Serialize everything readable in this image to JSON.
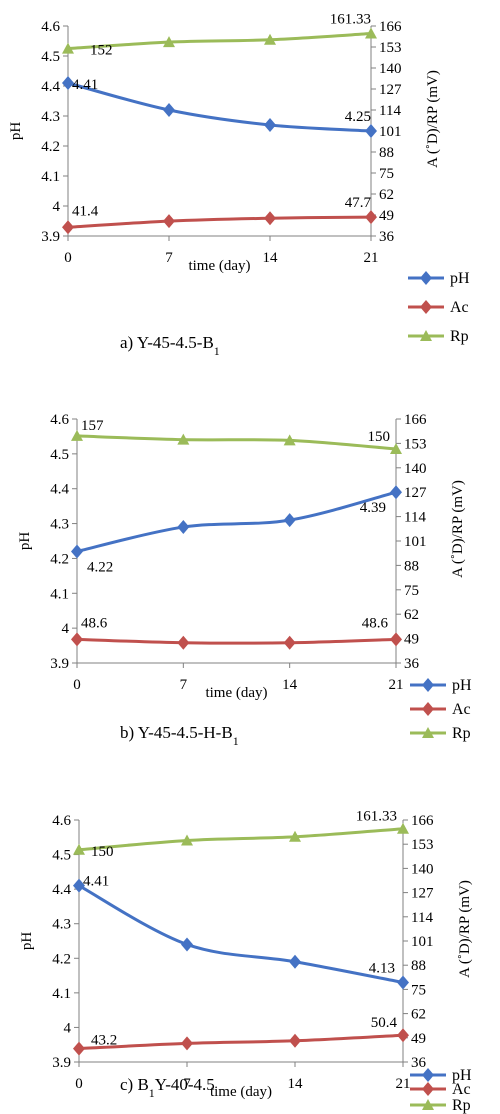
{
  "colors": {
    "pH": "#4472C4",
    "Ac": "#C0504D",
    "Rp": "#9BBB59",
    "axis": "#808080"
  },
  "chart_data": [
    {
      "type": "line",
      "caption_main": "a) Y-45-4.5-B",
      "caption_sub": "1",
      "caption_tail": "",
      "caption_pre": "",
      "x": [
        0,
        7,
        14,
        21
      ],
      "x_ticks": [
        "0",
        "7",
        "14",
        "21"
      ],
      "xlabel": "time (day)",
      "ylabel": "pH",
      "y2label": "A (˚D)/RP (mV)",
      "ylim": [
        3.9,
        4.6
      ],
      "y_ticks": [
        "3.9",
        "4",
        "4.1",
        "4.2",
        "4.3",
        "4.4",
        "4.5",
        "4.6"
      ],
      "y2lim": [
        36,
        166
      ],
      "y2_ticks": [
        "36",
        "49",
        "62",
        "75",
        "88",
        "101",
        "114",
        "127",
        "140",
        "153",
        "166"
      ],
      "series": [
        {
          "name": "pH",
          "axis": "left",
          "values": [
            4.41,
            4.32,
            4.27,
            4.25
          ],
          "marker": "diamond",
          "labels": [
            "4.41",
            "",
            "",
            "4.25"
          ]
        },
        {
          "name": "Ac",
          "axis": "right",
          "values": [
            41.4,
            45.2,
            47.0,
            47.7
          ],
          "marker": "diamond",
          "labels": [
            "41.4",
            "",
            "",
            "47.7"
          ]
        },
        {
          "name": "Rp",
          "axis": "right",
          "values": [
            152,
            156,
            157.5,
            161.33
          ],
          "marker": "triangle",
          "labels": [
            "152",
            "",
            "",
            "161.33"
          ]
        }
      ],
      "legend": [
        "pH",
        "Ac",
        "Rp"
      ]
    },
    {
      "type": "line",
      "caption_main": "b) Y-45-4.5-H-B",
      "caption_sub": "1",
      "caption_tail": "",
      "caption_pre": "",
      "x": [
        0,
        7,
        14,
        21
      ],
      "x_ticks": [
        "0",
        "7",
        "14",
        "21"
      ],
      "xlabel": "time (day)",
      "ylabel": "pH",
      "y2label": "A (˚D)/RP (mV)",
      "ylim": [
        3.9,
        4.6
      ],
      "y_ticks": [
        "3.9",
        "4",
        "4.1",
        "4.2",
        "4.3",
        "4.4",
        "4.5",
        "4.6"
      ],
      "y2lim": [
        36,
        166
      ],
      "y2_ticks": [
        "36",
        "49",
        "62",
        "75",
        "88",
        "101",
        "114",
        "127",
        "140",
        "153",
        "166"
      ],
      "series": [
        {
          "name": "pH",
          "axis": "left",
          "values": [
            4.22,
            4.29,
            4.31,
            4.39
          ],
          "marker": "diamond",
          "labels": [
            "4.22",
            "",
            "",
            "4.39"
          ]
        },
        {
          "name": "Ac",
          "axis": "right",
          "values": [
            48.6,
            46.8,
            46.8,
            48.6
          ],
          "marker": "diamond",
          "labels": [
            "48.6",
            "",
            "",
            "48.6"
          ]
        },
        {
          "name": "Rp",
          "axis": "right",
          "values": [
            157,
            155,
            154.6,
            150
          ],
          "marker": "triangle",
          "labels": [
            "157",
            "",
            "",
            "150"
          ]
        }
      ],
      "legend": [
        "pH",
        "Ac",
        "Rp"
      ]
    },
    {
      "type": "line",
      "caption_main": "Y-40-4.5",
      "caption_sub": "1",
      "caption_tail": "",
      "caption_pre": "c) B",
      "x": [
        0,
        7,
        14,
        21
      ],
      "x_ticks": [
        "0",
        "7",
        "14",
        "21"
      ],
      "xlabel": "time (day)",
      "ylabel": "pH",
      "y2label": "A (˚D)/RP (mV)",
      "ylim": [
        3.9,
        4.6
      ],
      "y_ticks": [
        "3.9",
        "4",
        "4.1",
        "4.2",
        "4.3",
        "4.4",
        "4.5",
        "4.6"
      ],
      "y2lim": [
        36,
        166
      ],
      "y2_ticks": [
        "36",
        "49",
        "62",
        "75",
        "88",
        "101",
        "114",
        "127",
        "140",
        "153",
        "166"
      ],
      "series": [
        {
          "name": "pH",
          "axis": "left",
          "values": [
            4.41,
            4.24,
            4.19,
            4.13
          ],
          "marker": "diamond",
          "labels": [
            "4.41",
            "",
            "",
            "4.13"
          ]
        },
        {
          "name": "Ac",
          "axis": "right",
          "values": [
            43.2,
            46.0,
            47.4,
            50.4
          ],
          "marker": "diamond",
          "labels": [
            "43.2",
            "",
            "",
            "50.4"
          ]
        },
        {
          "name": "Rp",
          "axis": "right",
          "values": [
            150,
            155,
            157,
            161.33
          ],
          "marker": "triangle",
          "labels": [
            "150",
            "",
            "",
            "161.33"
          ]
        }
      ],
      "legend": [
        "pH",
        "Ac",
        "Rp"
      ]
    }
  ]
}
